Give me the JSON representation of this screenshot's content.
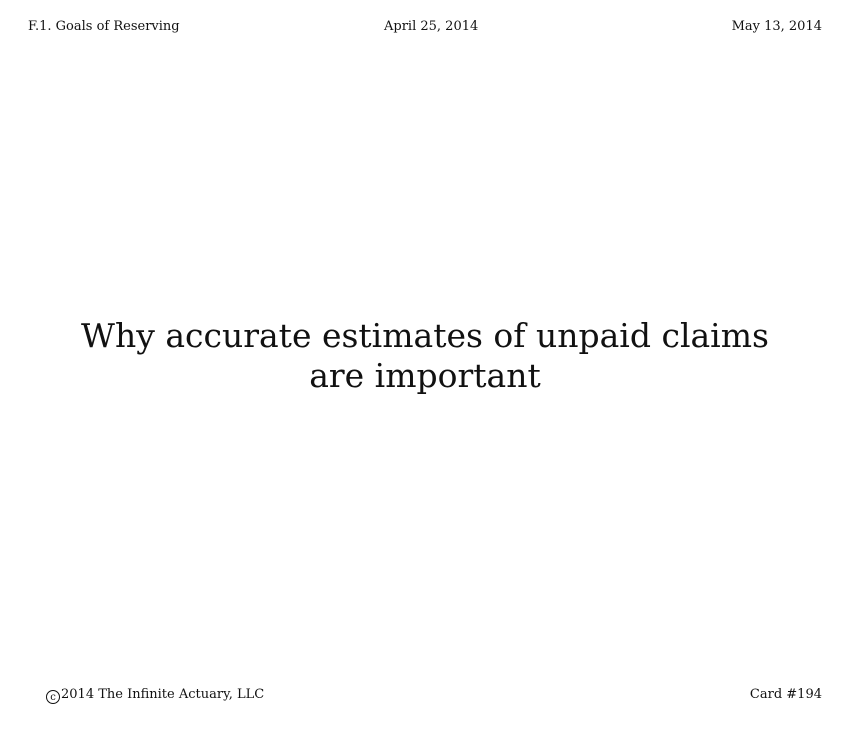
{
  "header": {
    "section": "F.1. Goals of Reserving",
    "date_created": "April 25, 2014",
    "date_updated": "May 13, 2014"
  },
  "card": {
    "prompt": "Why accurate estimates of unpaid claims are important"
  },
  "footer": {
    "copyright_symbol": "c",
    "copyright_text": "2014 The Infinite Actuary, LLC",
    "card_number": "Card #194"
  }
}
